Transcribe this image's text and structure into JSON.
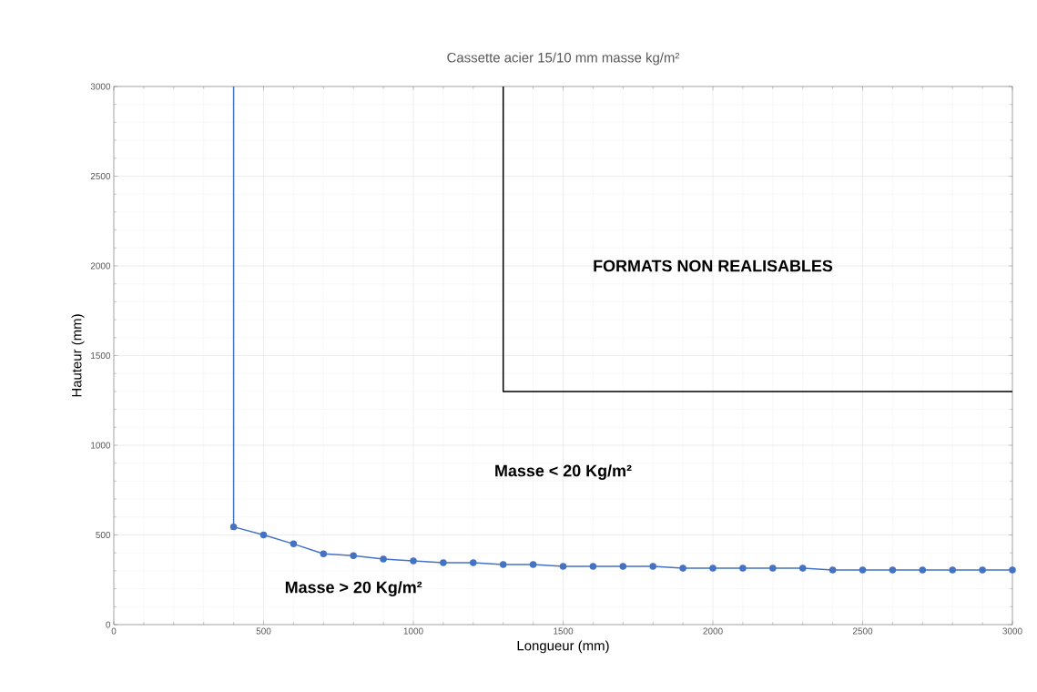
{
  "chart_data": {
    "type": "line",
    "title": "Cassette acier 15/10 mm masse kg/m²",
    "xlabel": "Longueur (mm)",
    "ylabel": "Hauteur (mm)",
    "xlim": [
      0,
      3000
    ],
    "ylim": [
      0,
      3000
    ],
    "xticks": [
      0,
      500,
      1000,
      1500,
      2000,
      2500,
      3000
    ],
    "yticks": [
      0,
      500,
      1000,
      1500,
      2000,
      2500,
      3000
    ],
    "grid": true,
    "series": [
      {
        "color": "#4472c4",
        "marker": "none",
        "x": [
          400,
          400
        ],
        "values": [
          3000,
          545
        ]
      },
      {
        "color": "#4472c4",
        "marker": "circle",
        "x": [
          400,
          500,
          600,
          700,
          800,
          900,
          1000,
          1100,
          1200,
          1300,
          1400,
          1500,
          1600,
          1700,
          1800,
          1900,
          2000,
          2100,
          2200,
          2300,
          2400,
          2500,
          2600,
          2700,
          2800,
          2900,
          3000
        ],
        "values": [
          545,
          500,
          450,
          395,
          385,
          365,
          355,
          345,
          345,
          335,
          335,
          325,
          325,
          325,
          325,
          315,
          315,
          315,
          315,
          315,
          305,
          305,
          305,
          305,
          305,
          305,
          305
        ]
      },
      {
        "color": "#000000",
        "marker": "none",
        "x": [
          1300,
          1300,
          3000
        ],
        "values": [
          3000,
          1300,
          1300
        ]
      }
    ],
    "annotations": [
      "FORMATS NON REALISABLES",
      "Masse < 20 Kg/m²",
      "Masse > 20 Kg/m²"
    ]
  }
}
